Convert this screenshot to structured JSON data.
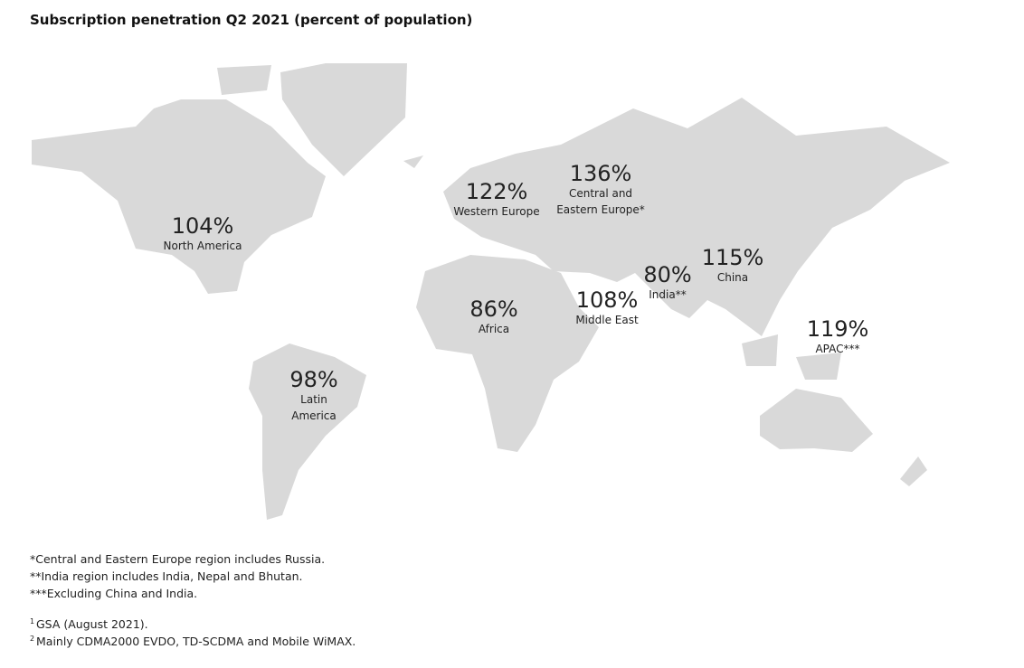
{
  "title": "Subscription penetration Q2 2021 (percent of population)",
  "regions": [
    {
      "value": "104%",
      "name": [
        "North America"
      ]
    },
    {
      "value": "122%",
      "name": [
        "Western Europe"
      ]
    },
    {
      "value": "136%",
      "name": [
        "Central and",
        "Eastern Europe*"
      ]
    },
    {
      "value": "80%",
      "name": [
        "India**"
      ]
    },
    {
      "value": "115%",
      "name": [
        "China"
      ]
    },
    {
      "value": "108%",
      "name": [
        "Middle East"
      ]
    },
    {
      "value": "86%",
      "name": [
        "Africa"
      ]
    },
    {
      "value": "119%",
      "name": [
        "APAC***"
      ]
    },
    {
      "value": "98%",
      "name": [
        "Latin",
        "America"
      ]
    }
  ],
  "notes": [
    "*Central and Eastern Europe region includes Russia.",
    "**India region includes India, Nepal and Bhutan.",
    "***Excluding China and India."
  ],
  "sources": [
    {
      "mark": "1",
      "text": "GSA (August 2021)."
    },
    {
      "mark": "2",
      "text": "Mainly CDMA2000 EVDO, TD-SCDMA and Mobile WiMAX."
    }
  ]
}
